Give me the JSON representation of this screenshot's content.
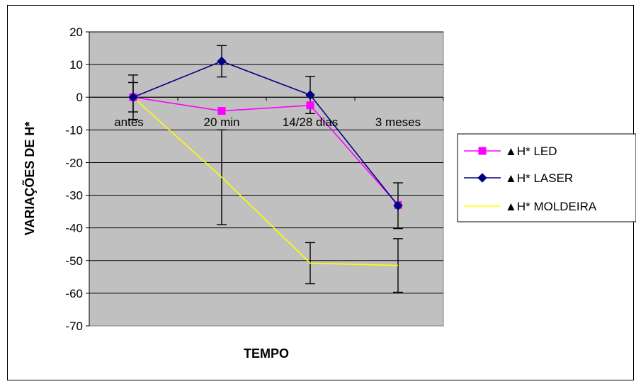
{
  "chart_data": {
    "type": "line",
    "categories": [
      "antes",
      "20 min",
      "14/28 dias",
      "3 meses"
    ],
    "xlabel": "TEMPO",
    "ylabel": "VARIAÇÕES DE H*",
    "ylim": [
      -70,
      20
    ],
    "yticks": [
      20,
      10,
      0,
      -10,
      -20,
      -30,
      -40,
      -50,
      -60,
      -70
    ],
    "grid": true,
    "plot_background": "#c0c0c0",
    "legend_position": "right",
    "series": [
      {
        "name": "▲H* LED",
        "color": "#ff00ff",
        "marker": "square",
        "values": [
          0,
          -4.2,
          -2.5,
          -33
        ],
        "error": [
          null,
          null,
          null,
          null
        ]
      },
      {
        "name": "▲H* LASER",
        "color": "#000080",
        "marker": "diamond",
        "values": [
          0,
          11,
          0.7,
          -33.2
        ],
        "error": [
          4.5,
          4.8,
          5.7,
          7
        ]
      },
      {
        "name": "▲H* MOLDEIRA",
        "color": "#ffff00",
        "marker": "none",
        "values": [
          0,
          -24.5,
          -50.8,
          -51.5
        ],
        "error": [
          6.8,
          14.5,
          6.3,
          8.2
        ]
      }
    ]
  }
}
